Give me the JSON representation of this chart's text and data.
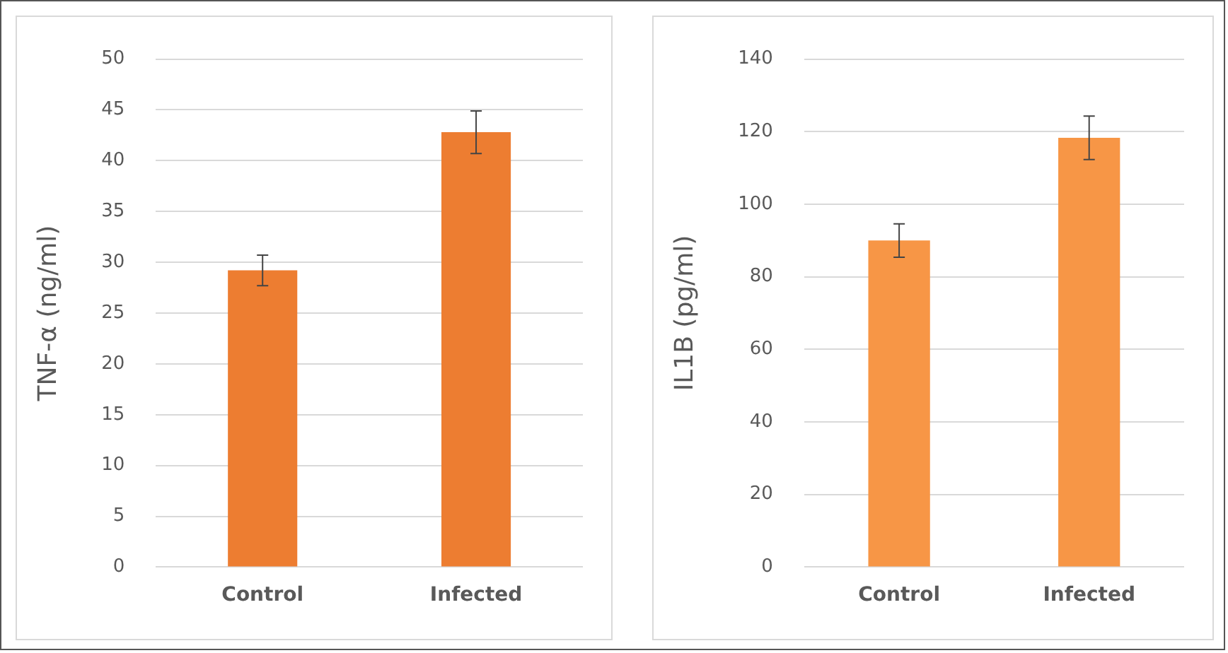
{
  "chart_data": [
    {
      "type": "bar",
      "ylabel": "TNF-α (ng/ml)",
      "categories": [
        "Control",
        "Infected"
      ],
      "series": [
        {
          "color": "#ed7d31",
          "values": [
            29.2,
            42.8
          ],
          "errors": [
            1.5,
            2.1
          ]
        }
      ],
      "ylim": [
        0,
        50
      ],
      "yticks": [
        0,
        5,
        10,
        15,
        20,
        25,
        30,
        35,
        40,
        45,
        50
      ],
      "grid": "y",
      "legend": false
    },
    {
      "type": "bar",
      "ylabel": "IL1B (pg/ml)",
      "categories": [
        "Control",
        "Infected"
      ],
      "series": [
        {
          "color": "#f79646",
          "values": [
            90,
            118.3
          ],
          "errors": [
            4.6,
            6
          ]
        }
      ],
      "ylim": [
        0,
        140
      ],
      "yticks": [
        0,
        20,
        40,
        60,
        80,
        100,
        120,
        140
      ],
      "grid": "y",
      "legend": false
    }
  ]
}
